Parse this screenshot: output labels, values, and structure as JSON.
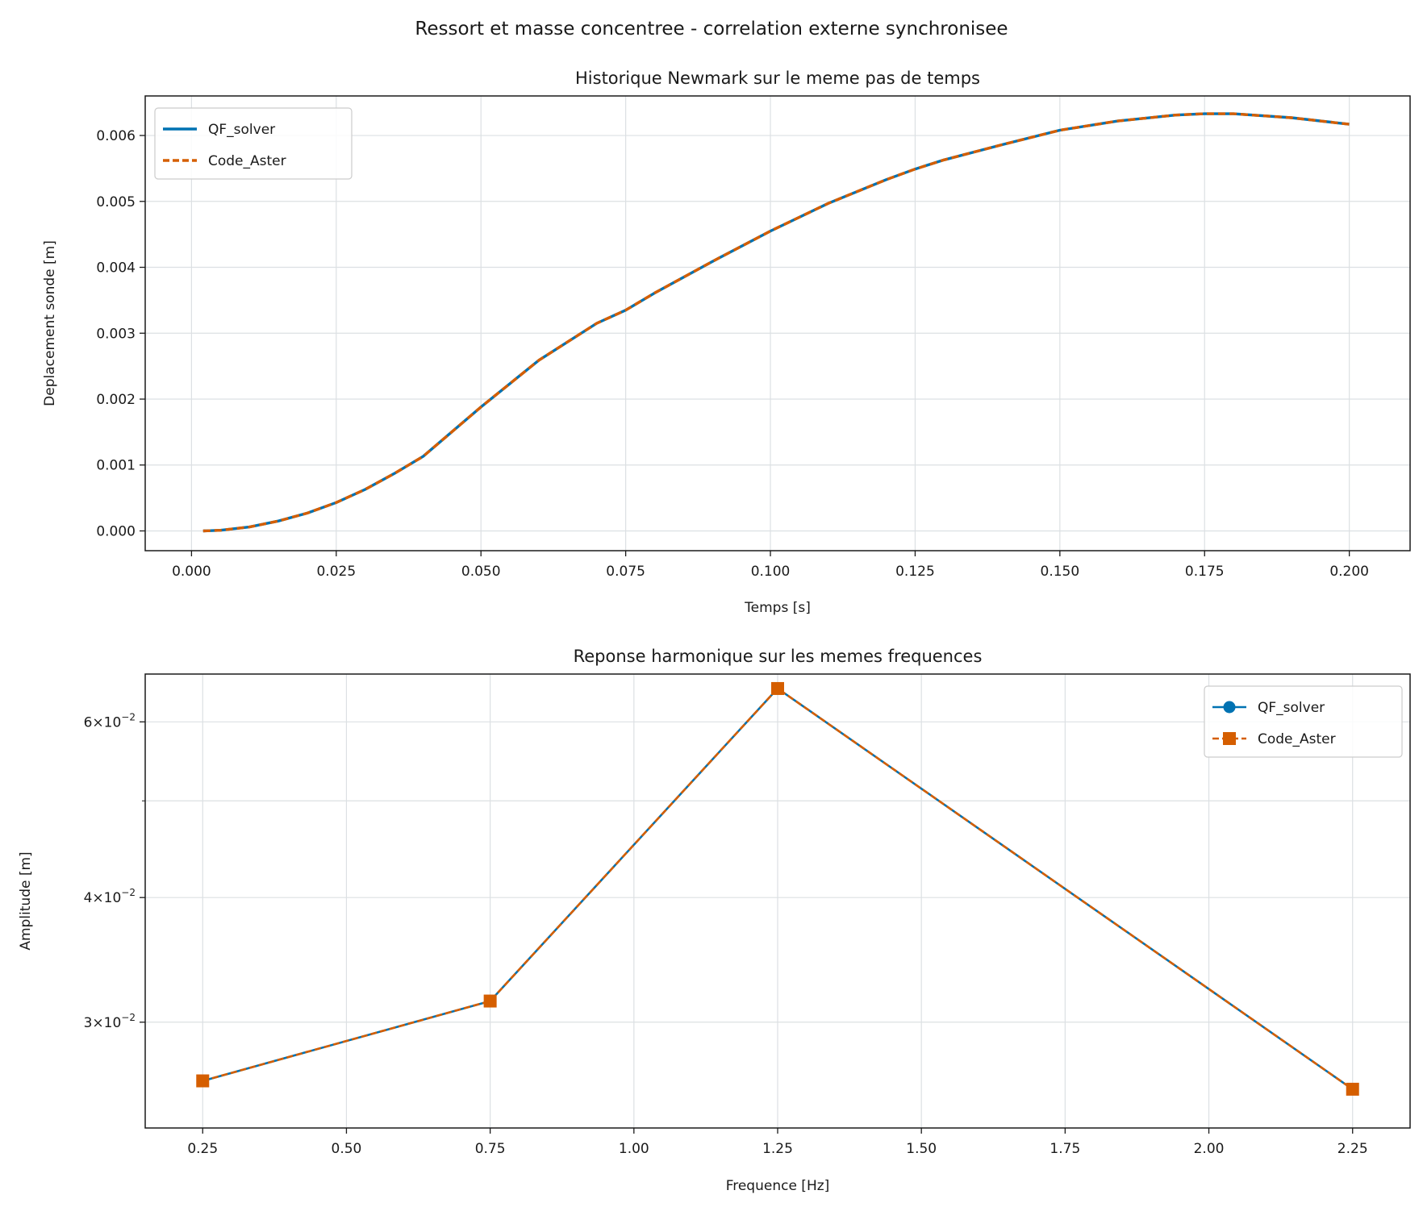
{
  "suptitle": "Ressort et masse concentree - correlation externe synchronisee",
  "colors": {
    "qf_solver": "#0072B2",
    "code_aster": "#D55E00",
    "grid": "#dce0e3",
    "axes": "#1a1a1a"
  },
  "chart_data": [
    {
      "type": "line",
      "title": "Historique Newmark sur le meme pas de temps",
      "xlabel": "Temps [s]",
      "ylabel": "Deplacement sonde [m]",
      "xlim": [
        -0.008,
        0.2105
      ],
      "ylim": [
        -0.0003,
        0.0066
      ],
      "xticks": [
        0.0,
        0.025,
        0.05,
        0.075,
        0.1,
        0.125,
        0.15,
        0.175,
        0.2
      ],
      "xtick_labels": [
        "0.000",
        "0.025",
        "0.050",
        "0.075",
        "0.100",
        "0.125",
        "0.150",
        "0.175",
        "0.200"
      ],
      "yticks": [
        0.0,
        0.001,
        0.002,
        0.003,
        0.004,
        0.005,
        0.006
      ],
      "ytick_labels": [
        "0.000",
        "0.001",
        "0.002",
        "0.003",
        "0.004",
        "0.005",
        "0.006"
      ],
      "grid": true,
      "legend_position": "upper left",
      "series": [
        {
          "name": "QF_solver",
          "style": "solid",
          "x": [
            0.002,
            0.005,
            0.01,
            0.015,
            0.02,
            0.025,
            0.03,
            0.035,
            0.04,
            0.05,
            0.06,
            0.07,
            0.075,
            0.08,
            0.09,
            0.1,
            0.11,
            0.12,
            0.125,
            0.13,
            0.14,
            0.15,
            0.16,
            0.17,
            0.175,
            0.18,
            0.19,
            0.2
          ],
          "y": [
            0.0,
            1e-05,
            6e-05,
            0.00015,
            0.00027,
            0.00043,
            0.00063,
            0.00087,
            0.00113,
            0.00188,
            0.00259,
            0.00315,
            0.00335,
            0.00361,
            0.00409,
            0.00455,
            0.00497,
            0.00533,
            0.00549,
            0.00563,
            0.00586,
            0.00608,
            0.00622,
            0.00631,
            0.00633,
            0.00633,
            0.00627,
            0.00617
          ]
        },
        {
          "name": "Code_Aster",
          "style": "dashed",
          "x": [
            0.002,
            0.005,
            0.01,
            0.015,
            0.02,
            0.025,
            0.03,
            0.035,
            0.04,
            0.05,
            0.06,
            0.07,
            0.075,
            0.08,
            0.09,
            0.1,
            0.11,
            0.12,
            0.125,
            0.13,
            0.14,
            0.15,
            0.16,
            0.17,
            0.175,
            0.18,
            0.19,
            0.2
          ],
          "y": [
            0.0,
            1e-05,
            6e-05,
            0.00015,
            0.00027,
            0.00043,
            0.00063,
            0.00087,
            0.00113,
            0.00188,
            0.00259,
            0.00315,
            0.00335,
            0.00361,
            0.00409,
            0.00455,
            0.00497,
            0.00533,
            0.00549,
            0.00563,
            0.00586,
            0.00608,
            0.00622,
            0.00631,
            0.00633,
            0.00633,
            0.00627,
            0.00617
          ]
        }
      ]
    },
    {
      "type": "line",
      "title": "Reponse harmonique sur les memes frequences",
      "xlabel": "Frequence [Hz]",
      "ylabel": "Amplitude [m]",
      "yscale": "log",
      "xlim": [
        0.15,
        2.35
      ],
      "ylim": [
        0.0235,
        0.067
      ],
      "xticks": [
        0.25,
        0.5,
        0.75,
        1.0,
        1.25,
        1.5,
        1.75,
        2.0,
        2.25
      ],
      "xtick_labels": [
        "0.25",
        "0.50",
        "0.75",
        "1.00",
        "1.25",
        "1.50",
        "1.75",
        "2.00",
        "2.25"
      ],
      "yticks": [
        0.03,
        0.04,
        0.06
      ],
      "ytick_labels": [
        {
          "mantissa": "3",
          "base": "10",
          "exponent": "−2"
        },
        {
          "mantissa": "4",
          "base": "10",
          "exponent": "−2"
        },
        {
          "mantissa": "6",
          "base": "10",
          "exponent": "−2"
        }
      ],
      "minor_yticks": [
        0.05
      ],
      "grid": true,
      "legend_position": "upper right",
      "series": [
        {
          "name": "QF_solver",
          "style": "solid",
          "marker": "circle",
          "x": [
            0.25,
            0.75,
            1.25,
            2.25
          ],
          "y": [
            0.0262,
            0.0315,
            0.0648,
            0.0257
          ]
        },
        {
          "name": "Code_Aster",
          "style": "dashed",
          "marker": "square",
          "x": [
            0.25,
            0.75,
            1.25,
            2.25
          ],
          "y": [
            0.0262,
            0.0315,
            0.0648,
            0.0257
          ]
        }
      ]
    }
  ]
}
